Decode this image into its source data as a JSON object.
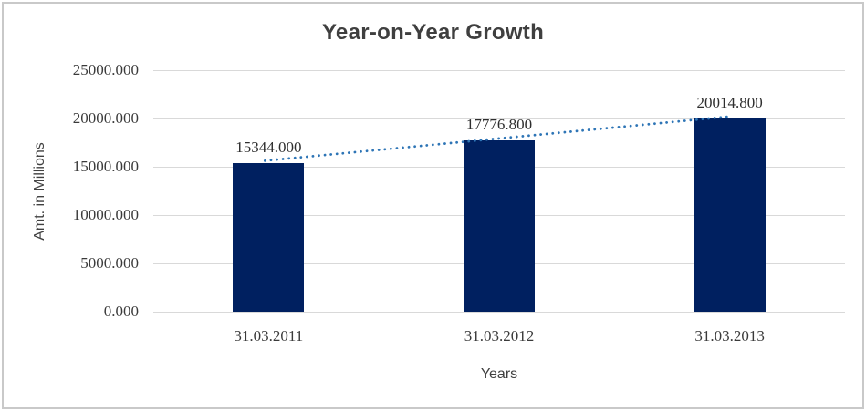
{
  "chart_data": {
    "type": "bar",
    "title": "Year-on-Year Growth",
    "xlabel": "Years",
    "ylabel": "Amt. in Millions",
    "categories": [
      "31.03.2011",
      "31.03.2012",
      "31.03.2013"
    ],
    "values": [
      15344.0,
      17776.8,
      20014.8
    ],
    "value_labels": [
      "15344.000",
      "17776.800",
      "20014.800"
    ],
    "ylim": [
      0,
      25000
    ],
    "ytick_step": 5000,
    "ytick_labels": [
      "0.000",
      "5000.000",
      "10000.000",
      "15000.000",
      "20000.000",
      "25000.000"
    ],
    "grid": true,
    "legend": false,
    "trendline": {
      "type": "linear",
      "style": "dotted"
    },
    "colors": {
      "bar": "#002060",
      "gridline": "#D9D9D9",
      "trendline": "#2E75B6",
      "text": "#404040",
      "border": "#C9C9C9",
      "background": "#FFFFFF"
    }
  }
}
